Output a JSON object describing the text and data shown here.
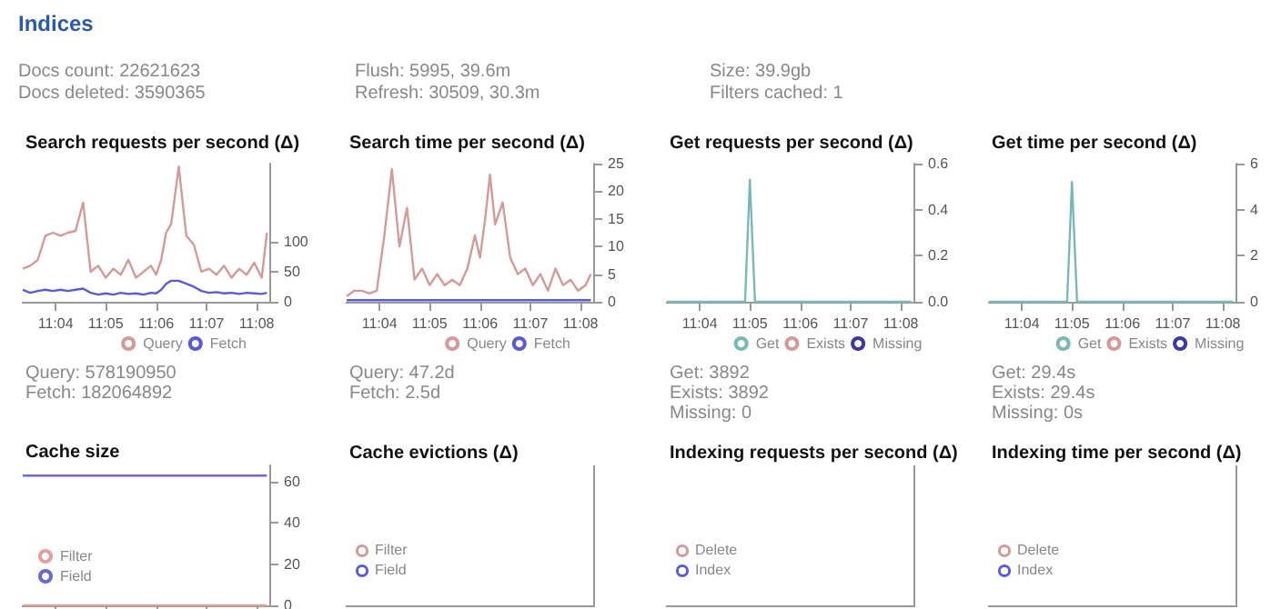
{
  "chart_data": [
    {
      "type": "other",
      "title": "Indices",
      "annotations": [
        "Docs count: 22621623",
        "Docs deleted: 3590365",
        "Flush: 5995, 39.6m",
        "Refresh: 30509, 30.3m",
        "Size: 39.9gb",
        "Filters cached: 1"
      ]
    },
    {
      "type": "line",
      "title": "Search requests per second (Δ)",
      "marker": "none",
      "grid": false,
      "legend": "bottom",
      "x": [
        11.0558,
        11.0583,
        11.0608,
        11.0633,
        11.0658,
        11.0683,
        11.0708,
        11.0733,
        11.0758,
        11.0783,
        11.0808,
        11.0833,
        11.0858,
        11.0883,
        11.0908,
        11.0933,
        11.0958,
        11.0983,
        11.1,
        11.1017,
        11.1033,
        11.105,
        11.1075,
        11.11,
        11.1125,
        11.115,
        11.1175,
        11.12,
        11.1225,
        11.125,
        11.1275,
        11.13,
        11.1325,
        11.135,
        11.1367
      ],
      "series": [
        {
          "name": "Query",
          "color": "#d49a9a",
          "values": [
            55,
            60,
            70,
            110,
            115,
            110,
            115,
            118,
            165,
            50,
            60,
            40,
            55,
            45,
            70,
            40,
            50,
            60,
            45,
            70,
            115,
            130,
            225,
            110,
            95,
            50,
            55,
            45,
            60,
            40,
            55,
            45,
            65,
            40,
            115
          ]
        },
        {
          "name": "Fetch",
          "color": "#5b5bd6",
          "values": [
            20,
            15,
            18,
            20,
            18,
            20,
            18,
            20,
            22,
            15,
            12,
            14,
            12,
            15,
            13,
            14,
            12,
            15,
            14,
            20,
            30,
            35,
            35,
            30,
            25,
            18,
            15,
            16,
            14,
            15,
            13,
            15,
            14,
            13,
            15
          ]
        }
      ],
      "xlim": [
        11.0555,
        11.1375
      ],
      "xticks": [
        {
          "value": 11.0667,
          "label": "11:04"
        },
        {
          "value": 11.0833,
          "label": "11:05"
        },
        {
          "value": 11.1,
          "label": "11:06"
        },
        {
          "value": 11.1167,
          "label": "11:07"
        },
        {
          "value": 11.1333,
          "label": "11:08"
        }
      ],
      "ylim": [
        0,
        230
      ],
      "yticks": [
        0,
        50,
        100
      ],
      "annotations": [
        "Query: 578190950",
        "Fetch: 182064892"
      ]
    },
    {
      "type": "line",
      "title": "Search time per second (Δ)",
      "marker": "none",
      "grid": false,
      "legend": "bottom",
      "x": [
        11.0558,
        11.0583,
        11.0608,
        11.0633,
        11.0658,
        11.0683,
        11.0708,
        11.0733,
        11.0758,
        11.0783,
        11.0808,
        11.0833,
        11.0858,
        11.0883,
        11.0908,
        11.0933,
        11.0958,
        11.0983,
        11.1,
        11.1017,
        11.1033,
        11.105,
        11.1075,
        11.11,
        11.1125,
        11.115,
        11.1175,
        11.12,
        11.1225,
        11.125,
        11.1275,
        11.13,
        11.1325,
        11.135,
        11.1367
      ],
      "series": [
        {
          "name": "Query",
          "color": "#d49a9a",
          "values": [
            1,
            2,
            2,
            1.5,
            2,
            12,
            24,
            10,
            17,
            4,
            6,
            3,
            5,
            3,
            4,
            3,
            6,
            12,
            8,
            15,
            23,
            14,
            18,
            8,
            5,
            6,
            3,
            5,
            2,
            6,
            3,
            4,
            2,
            3,
            5
          ]
        },
        {
          "name": "Fetch",
          "color": "#5b5bd6",
          "values": [
            0.3,
            0.3,
            0.3,
            0.3,
            0.3,
            0.3,
            0.3,
            0.3,
            0.3,
            0.3,
            0.3,
            0.3,
            0.3,
            0.3,
            0.3,
            0.3,
            0.3,
            0.3,
            0.3,
            0.3,
            0.3,
            0.3,
            0.3,
            0.3,
            0.3,
            0.3,
            0.3,
            0.3,
            0.3,
            0.3,
            0.3,
            0.3,
            0.3,
            0.3,
            0.3
          ]
        }
      ],
      "xlim": [
        11.0555,
        11.1375
      ],
      "xticks": [
        {
          "value": 11.0667,
          "label": "11:04"
        },
        {
          "value": 11.0833,
          "label": "11:05"
        },
        {
          "value": 11.1,
          "label": "11:06"
        },
        {
          "value": 11.1167,
          "label": "11:07"
        },
        {
          "value": 11.1333,
          "label": "11:08"
        }
      ],
      "ylim": [
        0,
        25
      ],
      "yticks": [
        0,
        5,
        10,
        15,
        20,
        25
      ],
      "annotations": [
        "Query: 47.2d",
        "Fetch: 2.5d"
      ]
    },
    {
      "type": "line",
      "title": "Get requests per second (Δ)",
      "marker": "none",
      "grid": false,
      "legend": "bottom",
      "x": [
        11.0558,
        11.0817,
        11.0833,
        11.085,
        11.1367
      ],
      "series": [
        {
          "name": "Get",
          "color": "#7ab8b8",
          "values": [
            0,
            0,
            0.53,
            0,
            0
          ]
        },
        {
          "name": "Exists",
          "color": "#d49a9a",
          "values": [
            null,
            null,
            null,
            null,
            null
          ]
        },
        {
          "name": "Missing",
          "color": "#3a3aa0",
          "values": [
            null,
            null,
            null,
            null,
            null
          ]
        }
      ],
      "xlim": [
        11.0555,
        11.1375
      ],
      "xticks": [
        {
          "value": 11.0667,
          "label": "11:04"
        },
        {
          "value": 11.0833,
          "label": "11:05"
        },
        {
          "value": 11.1,
          "label": "11:06"
        },
        {
          "value": 11.1167,
          "label": "11:07"
        },
        {
          "value": 11.1333,
          "label": "11:08"
        }
      ],
      "ylim": [
        0,
        0.6
      ],
      "yticks": [
        {
          "value": 0,
          "label": "0.0"
        },
        0.2,
        0.4,
        0.6
      ],
      "annotations": [
        "Get: 3892",
        "Exists: 3892",
        "Missing: 0"
      ]
    },
    {
      "type": "line",
      "title": "Get time per second (Δ)",
      "marker": "none",
      "grid": false,
      "legend": "bottom",
      "x": [
        11.0558,
        11.0817,
        11.0833,
        11.085,
        11.1367
      ],
      "series": [
        {
          "name": "Get",
          "color": "#7ab8b8",
          "values": [
            0,
            0,
            5.2,
            0,
            0
          ]
        },
        {
          "name": "Exists",
          "color": "#d49a9a",
          "values": [
            null,
            null,
            null,
            null,
            null
          ]
        },
        {
          "name": "Missing",
          "color": "#3a3aa0",
          "values": [
            null,
            null,
            null,
            null,
            null
          ]
        }
      ],
      "xlim": [
        11.0555,
        11.1375
      ],
      "xticks": [
        {
          "value": 11.0667,
          "label": "11:04"
        },
        {
          "value": 11.0833,
          "label": "11:05"
        },
        {
          "value": 11.1,
          "label": "11:06"
        },
        {
          "value": 11.1167,
          "label": "11:07"
        },
        {
          "value": 11.1333,
          "label": "11:08"
        }
      ],
      "ylim": [
        0,
        6
      ],
      "yticks": [
        0,
        2,
        4,
        6
      ],
      "annotations": [
        "Get: 29.4s",
        "Exists: 29.4s",
        "Missing: 0s"
      ]
    },
    {
      "type": "line",
      "title": "Cache size",
      "marker": "none",
      "grid": false,
      "legend": "bottom left",
      "tick_labels": "y",
      "x": [
        11.0558,
        11.1367
      ],
      "series": [
        {
          "name": "Filter",
          "color": "#e0a0a0",
          "values": [
            0,
            0
          ]
        },
        {
          "name": "Field",
          "color": "#6a6ad0",
          "values": [
            63,
            63
          ]
        }
      ],
      "xlim": [
        11.0555,
        11.1375
      ],
      "xticks": [
        {
          "value": 11.0667,
          "label": null
        },
        {
          "value": 11.0833,
          "label": null
        },
        {
          "value": 11.1,
          "label": null
        },
        {
          "value": 11.1167,
          "label": null
        },
        {
          "value": 11.1333,
          "label": null
        }
      ],
      "ylim": [
        0,
        68
      ],
      "yticks": [
        0,
        20,
        40,
        60
      ]
    },
    {
      "type": "other",
      "title": "Cache evictions (Δ)",
      "annotations": [
        "Filter",
        "Field"
      ]
    },
    {
      "type": "other",
      "title": "Indexing requests per second (Δ)",
      "annotations": [
        "Delete",
        "Index"
      ]
    },
    {
      "type": "other",
      "title": "Indexing time per second (Δ)",
      "annotations": [
        "Delete",
        "Index"
      ]
    }
  ]
}
